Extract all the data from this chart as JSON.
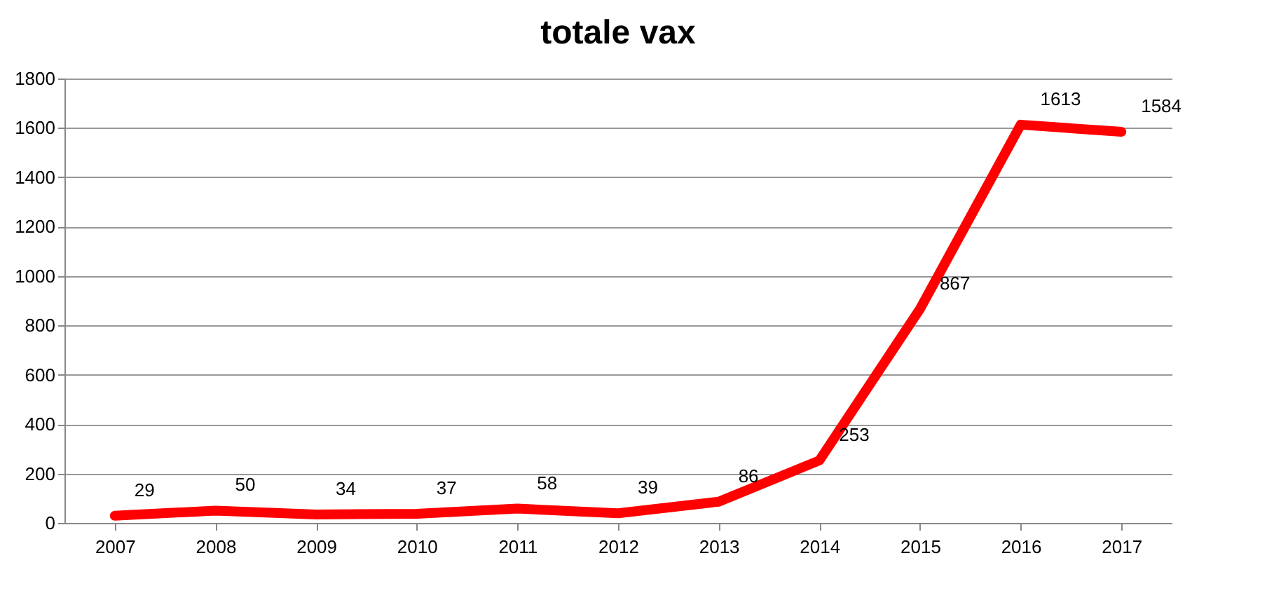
{
  "chart_data": {
    "type": "line",
    "title": "totale vax",
    "categories": [
      "2007",
      "2008",
      "2009",
      "2010",
      "2011",
      "2012",
      "2013",
      "2014",
      "2015",
      "2016",
      "2017"
    ],
    "series": [
      {
        "color": "#ff0000",
        "values": [
          29,
          50,
          34,
          37,
          58,
          39,
          86,
          253,
          867,
          1613,
          1584
        ]
      }
    ],
    "ylim": [
      0,
      1800
    ],
    "yticks": [
      0,
      200,
      400,
      600,
      800,
      1000,
      1200,
      1400,
      1600,
      1800
    ],
    "grid": "y",
    "data_labels": true,
    "marker": "none",
    "line_style": "solid"
  }
}
